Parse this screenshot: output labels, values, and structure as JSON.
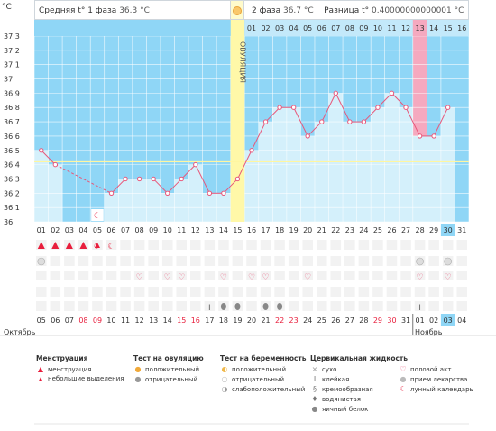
{
  "header": {
    "unit": "°C",
    "phase1_label": "Средняя t° 1 фаза",
    "phase1_value": "36.3 °C",
    "phase2_label": "2 фаза",
    "phase2_value": "36.7 °C",
    "diff_label": "Разница t°",
    "diff_value": "0.40000000000001 °C"
  },
  "chart_data": {
    "type": "line",
    "title": "",
    "ovulation_label": "ОВУЛЯЦИЯ",
    "ylim": [
      36,
      37.3
    ],
    "yticks": [
      "36",
      "36.1",
      "36.2",
      "36.3",
      "36.4",
      "36.5",
      "36.6",
      "36.7",
      "36.8",
      "36.9",
      "37",
      "37.1",
      "37.2",
      "37.3"
    ],
    "cycle_days": [
      "01",
      "02",
      "03",
      "04",
      "05",
      "06",
      "07",
      "08",
      "09",
      "10",
      "11",
      "12",
      "13",
      "14",
      "15",
      "16",
      "17",
      "18",
      "19",
      "20",
      "21",
      "22",
      "23",
      "24",
      "25",
      "26",
      "27",
      "28",
      "29",
      "30",
      "31"
    ],
    "temperatures": [
      36.5,
      36.4,
      null,
      null,
      null,
      36.2,
      36.3,
      36.3,
      36.3,
      36.2,
      36.3,
      36.4,
      36.2,
      36.2,
      36.3,
      36.5,
      36.7,
      36.8,
      36.8,
      36.6,
      36.7,
      36.9,
      36.7,
      36.7,
      36.8,
      36.9,
      36.8,
      36.6,
      36.6,
      36.8,
      null
    ],
    "ovulation_day": 15,
    "coverline": 36.42,
    "phase2_days": [
      "01",
      "02",
      "03",
      "04",
      "05",
      "06",
      "07",
      "08",
      "09",
      "10",
      "11",
      "12",
      "13",
      "14",
      "15",
      "16"
    ],
    "highlighted_phase2_day": "13",
    "highlighted_cycle_day": "30",
    "dates": [
      "05",
      "06",
      "07",
      "08",
      "09",
      "10",
      "11",
      "12",
      "13",
      "14",
      "15",
      "16",
      "17",
      "18",
      "19",
      "20",
      "21",
      "22",
      "23",
      "24",
      "25",
      "26",
      "27",
      "28",
      "29",
      "30",
      "31",
      "01",
      "02",
      "03",
      "04"
    ],
    "red_dates_idx": [
      3,
      4,
      10,
      11,
      17,
      18,
      24,
      25
    ],
    "highlighted_date_idx": 29,
    "months": [
      "Октябрь",
      "Ноябрь"
    ],
    "menstruation_days": [
      1,
      2,
      3,
      4,
      5
    ],
    "menstruation_heavy": [
      1,
      2,
      3,
      4
    ],
    "lunar_days": [
      5,
      6
    ],
    "lunar_icon_day": 5,
    "medication_days": [
      1,
      28,
      30
    ],
    "intercourse_days": [
      8,
      10,
      11,
      14,
      16,
      17,
      20,
      28,
      30
    ],
    "mucus_dry_days": [
      13,
      28
    ],
    "mucus_eggwhite_days": [
      14,
      15,
      17,
      18
    ]
  },
  "legend": {
    "col1": {
      "title": "Менструация",
      "items": [
        "менструация",
        "небольшие выделения"
      ]
    },
    "col2": {
      "title": "Тест на овуляцию",
      "items": [
        "положительный",
        "отрицательный"
      ]
    },
    "col3": {
      "title": "Тест на беременность",
      "items": [
        "положительный",
        "отрицательный",
        "слабоположительный"
      ]
    },
    "col4": {
      "title": "Цервикальная жидкость",
      "items": [
        "сухо",
        "клейкая",
        "кремообразная",
        "водянистая",
        "яичный белок"
      ]
    },
    "col5": {
      "items": [
        "половой акт",
        "прием лекарства",
        "лунный календарь"
      ]
    }
  },
  "colors": {
    "chart_bg": "#8fd6f6",
    "fill": "#d4f0fb",
    "line": "#e8577a",
    "ovulation": "#fff8a8",
    "highlight_pink": "#f5a9bf",
    "highlight_blue": "#8fd6f6",
    "red": "#e81e3c"
  }
}
